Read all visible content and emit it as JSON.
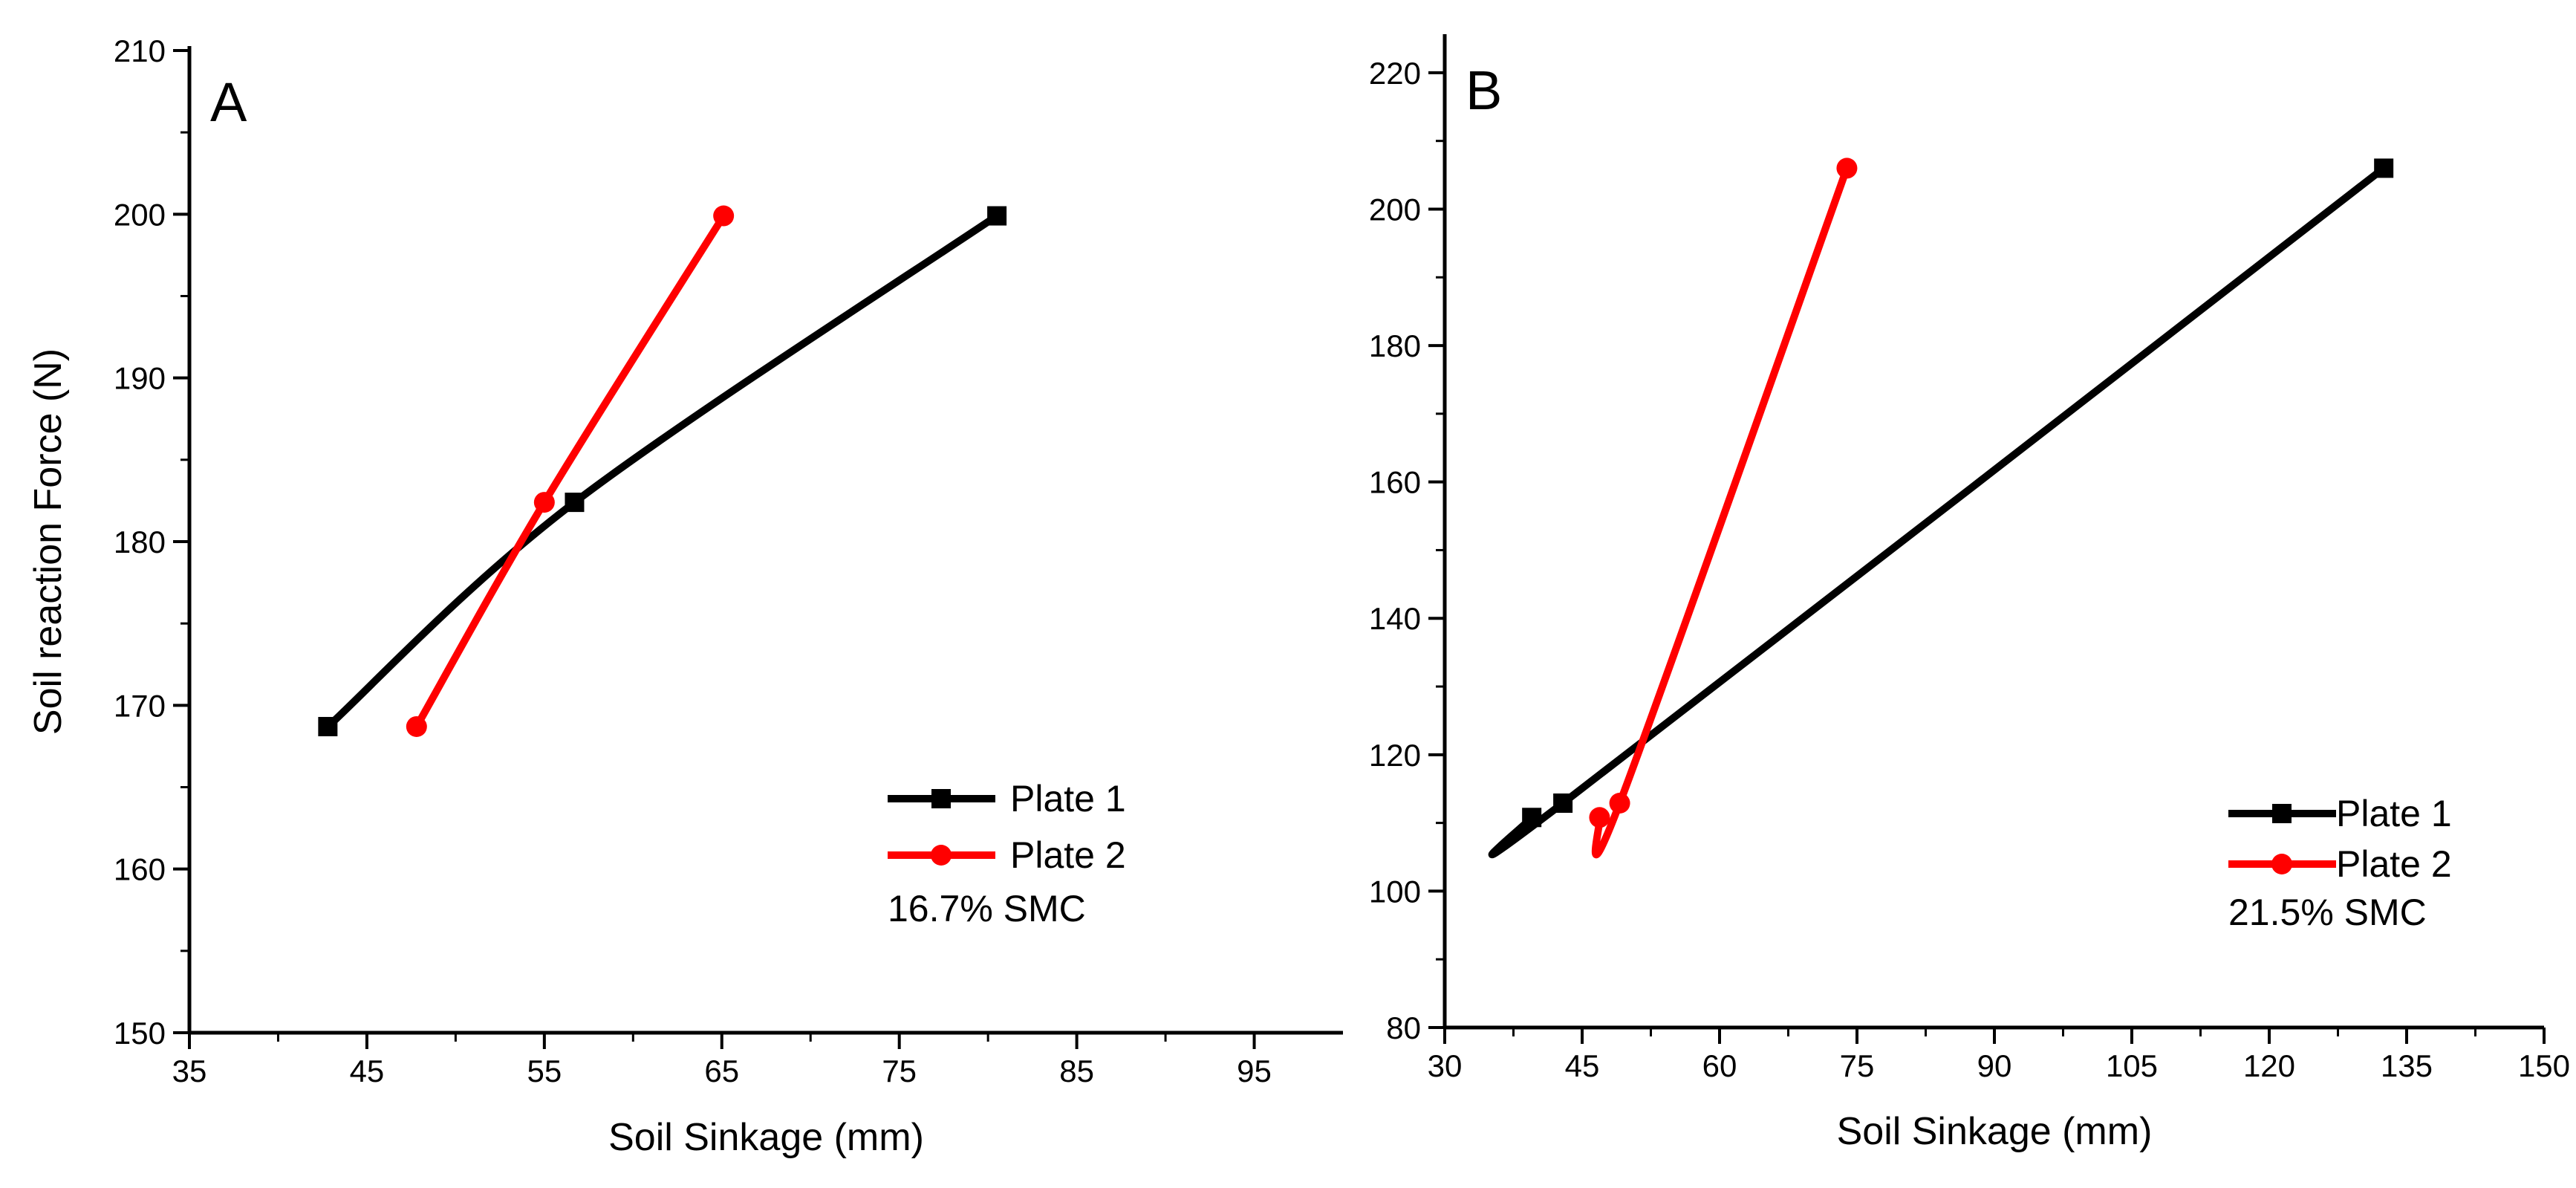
{
  "chart_data": [
    {
      "type": "line",
      "panel_label": "A",
      "xlabel": "Soil Sinkage (mm)",
      "ylabel": "Soil reaction Force (N)",
      "xlim": [
        35,
        100
      ],
      "ylim": [
        150,
        210
      ],
      "xticks": [
        35,
        45,
        55,
        65,
        75,
        85,
        95
      ],
      "yticks": [
        150,
        160,
        170,
        180,
        190,
        200,
        210
      ],
      "series": [
        {
          "name": "Plate 1",
          "color": "#000000",
          "marker": "square",
          "x": [
            42.8,
            56.7,
            80.5
          ],
          "y": [
            168.7,
            182.4,
            199.9
          ]
        },
        {
          "name": "Plate 2",
          "color": "#ff0000",
          "marker": "circle",
          "x": [
            47.8,
            55.0,
            65.1
          ],
          "y": [
            168.7,
            182.4,
            199.9
          ]
        }
      ],
      "legend_position": "bottom-right",
      "annotation": "16.7%  SMC",
      "grid": false
    },
    {
      "type": "line",
      "panel_label": "B",
      "xlabel": "Soil Sinkage (mm)",
      "ylabel": "",
      "xlim": [
        30,
        150
      ],
      "ylim": [
        80,
        225
      ],
      "xticks": [
        30,
        45,
        60,
        75,
        90,
        105,
        120,
        135,
        150
      ],
      "yticks": [
        80,
        100,
        120,
        140,
        160,
        180,
        200,
        220
      ],
      "series": [
        {
          "name": "Plate 1",
          "color": "#000000",
          "marker": "square",
          "x": [
            39.5,
            42.9,
            132.5
          ],
          "y": [
            110.8,
            112.9,
            206.0
          ]
        },
        {
          "name": "Plate 2",
          "color": "#ff0000",
          "marker": "circle",
          "x": [
            46.9,
            49.1,
            73.9
          ],
          "y": [
            110.8,
            112.9,
            206.0
          ]
        }
      ],
      "legend_position": "bottom-right",
      "annotation": "21.5%  SMC",
      "grid": false
    }
  ]
}
